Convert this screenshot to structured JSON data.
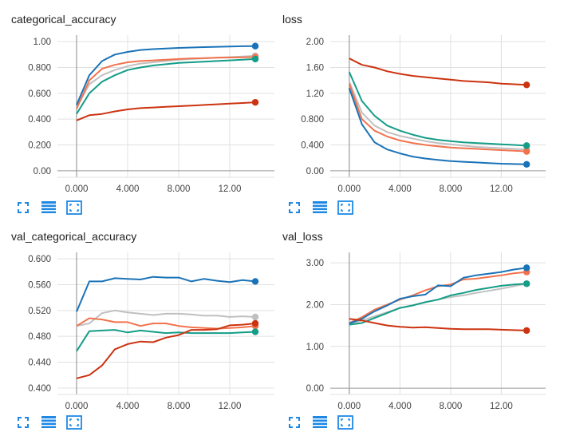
{
  "toolbar_icons": [
    "expand-icon",
    "data-table-icon",
    "fit-domain-icon"
  ],
  "colors": {
    "blue": "#1a73b8",
    "orange": "#f1734e",
    "gray": "#c0c0c0",
    "teal": "#149d87",
    "red": "#cc3311",
    "grid": "#e0e0e0",
    "axis": "#9e9e9e",
    "icon": "#1e88e5"
  },
  "chart_data": [
    {
      "type": "line",
      "title": "categorical_accuracy",
      "xlim": [
        -1.5,
        15.5
      ],
      "ylim": [
        -0.05,
        1.05
      ],
      "x_ticks": [
        0,
        4,
        8,
        12
      ],
      "x_tick_labels": [
        "0.000",
        "4.000",
        "8.000",
        "12.00"
      ],
      "y_ticks": [
        0,
        0.2,
        0.4,
        0.6,
        0.8,
        1.0
      ],
      "y_tick_labels": [
        "0.00",
        "0.200",
        "0.400",
        "0.600",
        "0.800",
        "1.00"
      ],
      "x": [
        0,
        1,
        2,
        3,
        4,
        5,
        6,
        7,
        8,
        9,
        10,
        11,
        12,
        13,
        14
      ],
      "series": [
        {
          "color": "#c0c0c0",
          "values": [
            0.49,
            0.67,
            0.74,
            0.78,
            0.81,
            0.83,
            0.84,
            0.85,
            0.86,
            0.865,
            0.87,
            0.875,
            0.88,
            0.885,
            0.89
          ]
        },
        {
          "color": "#f1734e",
          "values": [
            0.48,
            0.7,
            0.79,
            0.82,
            0.84,
            0.85,
            0.855,
            0.86,
            0.865,
            0.87,
            0.872,
            0.875,
            0.877,
            0.879,
            0.88
          ]
        },
        {
          "color": "#149d87",
          "values": [
            0.44,
            0.6,
            0.69,
            0.74,
            0.78,
            0.8,
            0.815,
            0.825,
            0.835,
            0.84,
            0.845,
            0.85,
            0.855,
            0.86,
            0.865
          ]
        },
        {
          "color": "#cc3311",
          "values": [
            0.39,
            0.43,
            0.44,
            0.46,
            0.475,
            0.485,
            0.49,
            0.495,
            0.5,
            0.505,
            0.51,
            0.515,
            0.52,
            0.525,
            0.53
          ]
        },
        {
          "color": "#1a73b8",
          "values": [
            0.51,
            0.74,
            0.85,
            0.9,
            0.92,
            0.935,
            0.942,
            0.947,
            0.951,
            0.954,
            0.957,
            0.96,
            0.962,
            0.964,
            0.965
          ]
        }
      ]
    },
    {
      "type": "line",
      "title": "loss",
      "xlim": [
        -1.5,
        15.5
      ],
      "ylim": [
        -0.1,
        2.1
      ],
      "x_ticks": [
        0,
        4,
        8,
        12
      ],
      "x_tick_labels": [
        "0.000",
        "4.000",
        "8.000",
        "12.00"
      ],
      "y_ticks": [
        0,
        0.4,
        0.8,
        1.2,
        1.6,
        2.0
      ],
      "y_tick_labels": [
        "0.00",
        "0.400",
        "0.800",
        "1.20",
        "1.60",
        "2.00"
      ],
      "x": [
        0,
        1,
        2,
        3,
        4,
        5,
        6,
        7,
        8,
        9,
        10,
        11,
        12,
        13,
        14
      ],
      "series": [
        {
          "color": "#c0c0c0",
          "values": [
            1.38,
            0.9,
            0.7,
            0.6,
            0.54,
            0.5,
            0.46,
            0.43,
            0.41,
            0.39,
            0.37,
            0.36,
            0.35,
            0.34,
            0.33
          ]
        },
        {
          "color": "#f1734e",
          "values": [
            1.35,
            0.8,
            0.62,
            0.53,
            0.47,
            0.43,
            0.4,
            0.38,
            0.36,
            0.35,
            0.34,
            0.33,
            0.32,
            0.31,
            0.3
          ]
        },
        {
          "color": "#149d87",
          "values": [
            1.53,
            1.08,
            0.85,
            0.7,
            0.62,
            0.56,
            0.51,
            0.48,
            0.46,
            0.44,
            0.43,
            0.42,
            0.41,
            0.4,
            0.39
          ]
        },
        {
          "color": "#cc3311",
          "values": [
            1.74,
            1.64,
            1.6,
            1.54,
            1.5,
            1.47,
            1.45,
            1.43,
            1.41,
            1.39,
            1.38,
            1.37,
            1.35,
            1.34,
            1.33
          ]
        },
        {
          "color": "#1a73b8",
          "values": [
            1.28,
            0.72,
            0.44,
            0.33,
            0.27,
            0.22,
            0.19,
            0.17,
            0.15,
            0.14,
            0.13,
            0.12,
            0.11,
            0.105,
            0.1
          ]
        }
      ]
    },
    {
      "type": "line",
      "title": "val_categorical_accuracy",
      "xlim": [
        -1.5,
        15.5
      ],
      "ylim": [
        0.39,
        0.61
      ],
      "x_ticks": [
        0,
        4,
        8,
        12
      ],
      "x_tick_labels": [
        "0.000",
        "4.000",
        "8.000",
        "12.00"
      ],
      "y_ticks": [
        0.4,
        0.44,
        0.48,
        0.52,
        0.56,
        0.6
      ],
      "y_tick_labels": [
        "0.400",
        "0.440",
        "0.480",
        "0.520",
        "0.560",
        "0.600"
      ],
      "x": [
        0,
        1,
        2,
        3,
        4,
        5,
        6,
        7,
        8,
        9,
        10,
        11,
        12,
        13,
        14
      ],
      "series": [
        {
          "color": "#c0c0c0",
          "values": [
            0.496,
            0.5,
            0.516,
            0.52,
            0.517,
            0.515,
            0.513,
            0.515,
            0.515,
            0.514,
            0.512,
            0.512,
            0.51,
            0.511,
            0.51
          ]
        },
        {
          "color": "#f1734e",
          "values": [
            0.496,
            0.508,
            0.506,
            0.502,
            0.502,
            0.496,
            0.5,
            0.5,
            0.496,
            0.494,
            0.493,
            0.492,
            0.493,
            0.494,
            0.496
          ]
        },
        {
          "color": "#149d87",
          "values": [
            0.457,
            0.488,
            0.489,
            0.49,
            0.486,
            0.489,
            0.487,
            0.485,
            0.486,
            0.485,
            0.485,
            0.485,
            0.485,
            0.486,
            0.487
          ]
        },
        {
          "color": "#cc3311",
          "values": [
            0.415,
            0.42,
            0.435,
            0.46,
            0.468,
            0.472,
            0.471,
            0.478,
            0.482,
            0.49,
            0.49,
            0.491,
            0.497,
            0.498,
            0.5
          ]
        },
        {
          "color": "#1a73b8",
          "values": [
            0.518,
            0.565,
            0.565,
            0.57,
            0.569,
            0.568,
            0.572,
            0.571,
            0.571,
            0.565,
            0.569,
            0.566,
            0.564,
            0.567,
            0.565
          ]
        }
      ]
    },
    {
      "type": "line",
      "title": "val_loss",
      "xlim": [
        -1.5,
        15.5
      ],
      "ylim": [
        -0.15,
        3.25
      ],
      "x_ticks": [
        0,
        4,
        8,
        12
      ],
      "x_tick_labels": [
        "0.000",
        "4.000",
        "8.000",
        "12.00"
      ],
      "y_ticks": [
        0,
        1,
        2,
        3
      ],
      "y_tick_labels": [
        "0.00",
        "1.00",
        "2.00",
        "3.00"
      ],
      "x": [
        0,
        1,
        2,
        3,
        4,
        5,
        6,
        7,
        8,
        9,
        10,
        11,
        12,
        13,
        14
      ],
      "series": [
        {
          "color": "#c0c0c0",
          "values": [
            1.52,
            1.62,
            1.72,
            1.82,
            1.92,
            1.98,
            2.05,
            2.12,
            2.18,
            2.22,
            2.28,
            2.33,
            2.38,
            2.44,
            2.5
          ]
        },
        {
          "color": "#149d87",
          "values": [
            1.52,
            1.56,
            1.68,
            1.8,
            1.92,
            1.98,
            2.06,
            2.12,
            2.22,
            2.28,
            2.35,
            2.4,
            2.45,
            2.48,
            2.5
          ]
        },
        {
          "color": "#f1734e",
          "values": [
            1.56,
            1.7,
            1.88,
            2.0,
            2.12,
            2.22,
            2.34,
            2.44,
            2.48,
            2.6,
            2.62,
            2.66,
            2.7,
            2.75,
            2.78
          ]
        },
        {
          "color": "#1a73b8",
          "values": [
            1.55,
            1.66,
            1.84,
            1.98,
            2.14,
            2.2,
            2.24,
            2.46,
            2.44,
            2.64,
            2.7,
            2.74,
            2.78,
            2.84,
            2.88
          ]
        },
        {
          "color": "#cc3311",
          "values": [
            1.66,
            1.62,
            1.56,
            1.5,
            1.47,
            1.45,
            1.46,
            1.44,
            1.42,
            1.41,
            1.41,
            1.41,
            1.4,
            1.39,
            1.38
          ]
        }
      ]
    }
  ]
}
